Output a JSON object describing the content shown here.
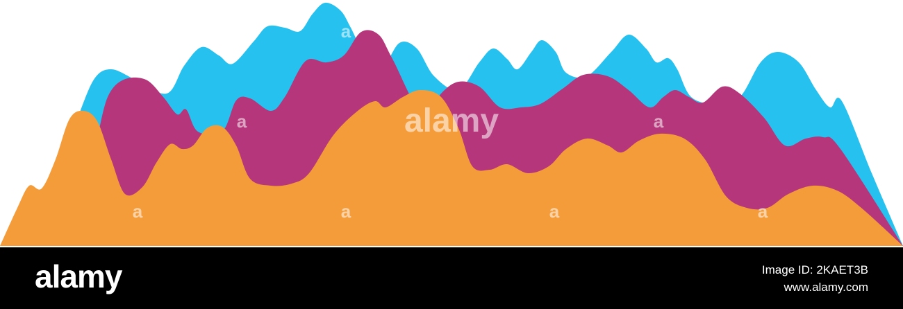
{
  "watermark": {
    "center_logo": "alamy",
    "marks": [
      "a",
      "a",
      "a",
      "a",
      "a",
      "a",
      "a"
    ]
  },
  "footer": {
    "logo": "alamy",
    "image_id": "Image ID: 2KAET3B",
    "url": "www.alamy.com"
  }
}
